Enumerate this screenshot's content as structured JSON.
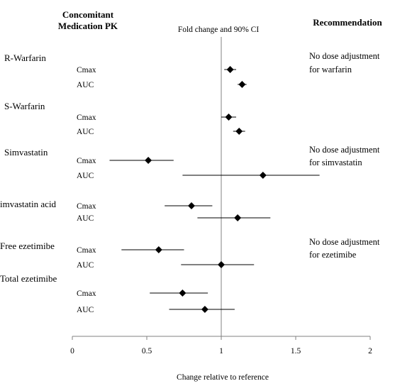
{
  "chart_data": {
    "type": "forest",
    "title": "Fold change and 90% CI",
    "xlabel": "Change relative to reference",
    "xlim": [
      0,
      2
    ],
    "xticks": [
      "0",
      "0.5",
      "1",
      "1.5",
      "2"
    ],
    "reference_line": 1,
    "column_headers": {
      "left_line1": "Concomitant",
      "left_line2": "Medication PK",
      "right": "Recommendation"
    },
    "groups": [
      {
        "medication": "R-Warfarin",
        "rows": [
          {
            "pk": "Cmax",
            "estimate": 1.06,
            "lower": 1.02,
            "upper": 1.1
          },
          {
            "pk": "AUC",
            "estimate": 1.14,
            "lower": 1.11,
            "upper": 1.17
          }
        ]
      },
      {
        "medication": "S-Warfarin",
        "rows": [
          {
            "pk": "Cmax",
            "estimate": 1.05,
            "lower": 1.0,
            "upper": 1.1
          },
          {
            "pk": "AUC",
            "estimate": 1.12,
            "lower": 1.08,
            "upper": 1.16
          }
        ]
      },
      {
        "medication": "Simvastatin",
        "rows": [
          {
            "pk": "Cmax",
            "estimate": 0.51,
            "lower": 0.25,
            "upper": 0.68
          },
          {
            "pk": "AUC",
            "estimate": 1.28,
            "lower": 0.74,
            "upper": 1.66
          }
        ]
      },
      {
        "medication": "imvastatin acid",
        "rows": [
          {
            "pk": "Cmax",
            "estimate": 0.8,
            "lower": 0.62,
            "upper": 0.94
          },
          {
            "pk": "AUC",
            "estimate": 1.11,
            "lower": 0.84,
            "upper": 1.33
          }
        ]
      },
      {
        "medication": "Free ezetimibe",
        "rows": [
          {
            "pk": "Cmax",
            "estimate": 0.58,
            "lower": 0.33,
            "upper": 0.75
          },
          {
            "pk": "AUC",
            "estimate": 1.0,
            "lower": 0.73,
            "upper": 1.22
          }
        ]
      },
      {
        "medication": "Total ezetimibe",
        "rows": [
          {
            "pk": "Cmax",
            "estimate": 0.74,
            "lower": 0.52,
            "upper": 0.91
          },
          {
            "pk": "AUC",
            "estimate": 0.89,
            "lower": 0.65,
            "upper": 1.09
          }
        ]
      }
    ],
    "recommendations": [
      {
        "line1": "No dose adjustment",
        "line2": "for warfarin"
      },
      {
        "line1": "No dose adjustment",
        "line2": "for simvastatin"
      },
      {
        "line1": "No dose adjustment",
        "line2": "for ezetimibe"
      }
    ]
  }
}
